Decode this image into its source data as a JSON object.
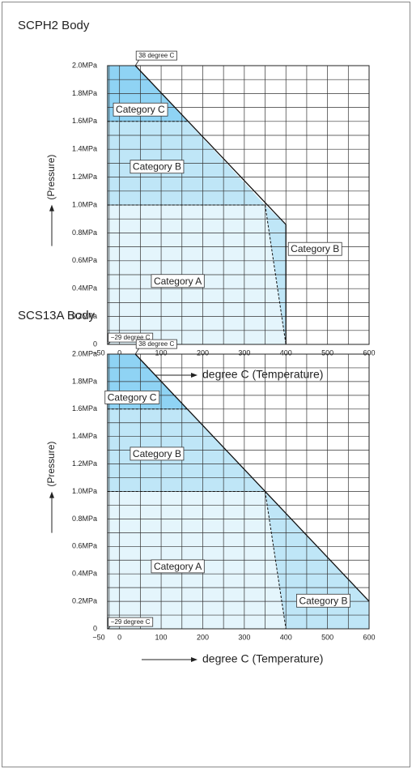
{
  "chart_data": [
    {
      "type": "region",
      "title": "SCPH2 Body",
      "xlabel": "degree C (Temperature)",
      "ylabel": "(Pressure)",
      "xlim": [
        -50,
        600
      ],
      "ylim": [
        0,
        2.0
      ],
      "xticks": [
        {
          "value": -50,
          "label": "−50"
        },
        0,
        100,
        200,
        300,
        400,
        500,
        600
      ],
      "yticks": [
        0,
        {
          "value": 0.2,
          "label": "0.2MPa"
        },
        {
          "value": 0.4,
          "label": "0.4MPa"
        },
        {
          "value": 0.6,
          "label": "0.6MPa"
        },
        {
          "value": 0.8,
          "label": "0.8MPa"
        },
        {
          "value": 1.0,
          "label": "1.0MPa"
        },
        {
          "value": 1.2,
          "label": "1.2MPa"
        },
        {
          "value": 1.4,
          "label": "1.4MPa"
        },
        {
          "value": 1.6,
          "label": "1.6MPa"
        },
        {
          "value": 1.8,
          "label": "1.8MPa"
        },
        {
          "value": 2.0,
          "label": "2.0MPa"
        }
      ],
      "grid": true,
      "regions": [
        {
          "name": "Category C",
          "color": "#8fd3f4",
          "x": [
            -29,
            -29,
            38,
            163
          ],
          "y": [
            1.6,
            2.0,
            2.0,
            1.6
          ],
          "label_x": 50,
          "label_y": 1.68
        },
        {
          "name": "Category B",
          "color": "#bfe6f7",
          "x": [
            -29,
            -29,
            163,
            350
          ],
          "y": [
            1.0,
            1.6,
            1.6,
            1.0
          ],
          "label_x": 90,
          "label_y": 1.27
        },
        {
          "name": "Category A",
          "color": "#e4f5fc",
          "x": [
            -29,
            -29,
            350,
            400
          ],
          "y": [
            0,
            1.0,
            1.0,
            0
          ],
          "label_x": 140,
          "label_y": 0.45
        },
        {
          "name": "Category B",
          "color": "#bfe6f7",
          "x": [
            350,
            400,
            400
          ],
          "y": [
            1.0,
            0.86,
            0
          ],
          "label_x": 470,
          "label_y": 0.68
        }
      ],
      "lines": [
        {
          "style": "dashed",
          "x": [
            -29,
            163
          ],
          "y": [
            1.6,
            1.6
          ]
        },
        {
          "style": "dashed",
          "x": [
            -29,
            350
          ],
          "y": [
            1.0,
            1.0
          ]
        },
        {
          "style": "dashed",
          "x": [
            350,
            400
          ],
          "y": [
            1.0,
            0
          ]
        },
        {
          "style": "solid",
          "x": [
            38,
            400,
            400
          ],
          "y": [
            2.0,
            0.86,
            0
          ]
        }
      ],
      "annotations": [
        {
          "text": "38 degree C",
          "x": 38,
          "y": 2.0
        },
        {
          "text": "−29 degree C",
          "x": -29,
          "y": 0
        }
      ]
    },
    {
      "type": "region",
      "title": "SCS13A Body",
      "xlabel": "degree C (Temperature)",
      "ylabel": "(Pressure)",
      "xlim": [
        -50,
        600
      ],
      "ylim": [
        0,
        2.0
      ],
      "xticks": [
        {
          "value": -50,
          "label": "−50"
        },
        0,
        100,
        200,
        300,
        400,
        500,
        600
      ],
      "yticks": [
        0,
        {
          "value": 0.2,
          "label": "0.2MPa"
        },
        {
          "value": 0.4,
          "label": "0.4MPa"
        },
        {
          "value": 0.6,
          "label": "0.6MPa"
        },
        {
          "value": 0.8,
          "label": "0.8MPa"
        },
        {
          "value": 1.0,
          "label": "1.0MPa"
        },
        {
          "value": 1.2,
          "label": "1.2MPa"
        },
        {
          "value": 1.4,
          "label": "1.4MPa"
        },
        {
          "value": 1.6,
          "label": "1.6MPa"
        },
        {
          "value": 1.8,
          "label": "1.8MPa"
        },
        {
          "value": 2.0,
          "label": "2.0MPa"
        }
      ],
      "grid": true,
      "regions": [
        {
          "name": "Category C",
          "color": "#8fd3f4",
          "x": [
            -29,
            -29,
            38,
            163
          ],
          "y": [
            1.6,
            2.0,
            2.0,
            1.6
          ],
          "label_x": 30,
          "label_y": 1.68
        },
        {
          "name": "Category B",
          "color": "#bfe6f7",
          "x": [
            -29,
            -29,
            163,
            350
          ],
          "y": [
            1.0,
            1.6,
            1.6,
            1.0
          ],
          "label_x": 90,
          "label_y": 1.27
        },
        {
          "name": "Category A",
          "color": "#e4f5fc",
          "x": [
            -29,
            -29,
            350,
            400
          ],
          "y": [
            0,
            1.0,
            1.0,
            0
          ],
          "label_x": 140,
          "label_y": 0.45
        },
        {
          "name": "Category B",
          "color": "#bfe6f7",
          "x": [
            350,
            600,
            600,
            400
          ],
          "y": [
            1.0,
            0.2,
            0,
            0
          ],
          "label_x": 490,
          "label_y": 0.2
        }
      ],
      "lines": [
        {
          "style": "dashed",
          "x": [
            -29,
            163
          ],
          "y": [
            1.6,
            1.6
          ]
        },
        {
          "style": "dashed",
          "x": [
            -29,
            350
          ],
          "y": [
            1.0,
            1.0
          ]
        },
        {
          "style": "dashed",
          "x": [
            350,
            400
          ],
          "y": [
            1.0,
            0
          ]
        },
        {
          "style": "solid",
          "x": [
            38,
            600
          ],
          "y": [
            2.0,
            0.2
          ]
        }
      ],
      "annotations": [
        {
          "text": "38 degree C",
          "x": 38,
          "y": 2.0
        },
        {
          "text": "−29 degree C",
          "x": -29,
          "y": 0
        }
      ]
    }
  ]
}
